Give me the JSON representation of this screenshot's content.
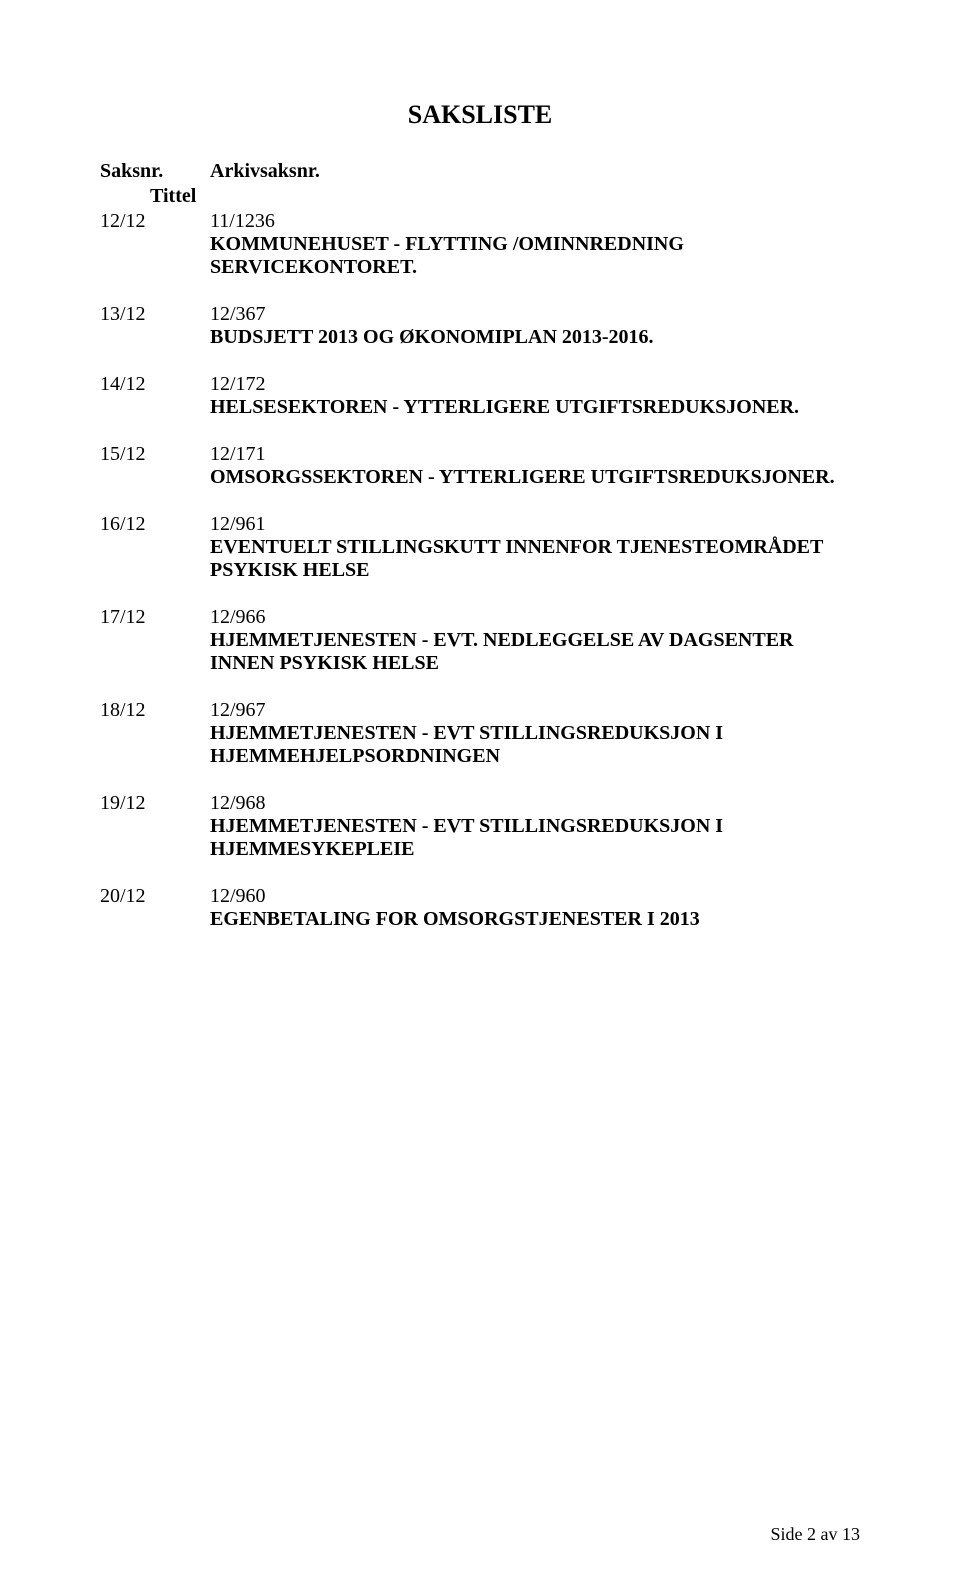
{
  "title": "SAKSLISTE",
  "header": {
    "colA": "Saksnr.",
    "colB": "Arkivsaksnr.",
    "sub": "Tittel"
  },
  "items": [
    {
      "nr": "12/12",
      "ref": "11/1236",
      "desc": "KOMMUNEHUSET - FLYTTING /OMINNREDNING SERVICEKONTORET."
    },
    {
      "nr": "13/12",
      "ref": "12/367",
      "desc": "BUDSJETT 2013 OG ØKONOMIPLAN 2013-2016."
    },
    {
      "nr": "14/12",
      "ref": "12/172",
      "desc": "HELSESEKTOREN - YTTERLIGERE UTGIFTSREDUKSJONER."
    },
    {
      "nr": "15/12",
      "ref": "12/171",
      "desc": "OMSORGSSEKTOREN - YTTERLIGERE UTGIFTSREDUKSJONER."
    },
    {
      "nr": "16/12",
      "ref": "12/961",
      "desc": "EVENTUELT STILLINGSKUTT INNENFOR TJENESTEOMRÅDET PSYKISK HELSE"
    },
    {
      "nr": "17/12",
      "ref": "12/966",
      "desc": "HJEMMETJENESTEN - EVT. NEDLEGGELSE AV DAGSENTER INNEN PSYKISK HELSE"
    },
    {
      "nr": "18/12",
      "ref": "12/967",
      "desc": "HJEMMETJENESTEN - EVT STILLINGSREDUKSJON I HJEMMEHJELPSORDNINGEN"
    },
    {
      "nr": "19/12",
      "ref": "12/968",
      "desc": "HJEMMETJENESTEN - EVT STILLINGSREDUKSJON I HJEMMESYKEPLEIE"
    },
    {
      "nr": "20/12",
      "ref": "12/960",
      "desc": "EGENBETALING FOR OMSORGSTJENESTER I 2013"
    }
  ],
  "footer": "Side 2 av 13"
}
